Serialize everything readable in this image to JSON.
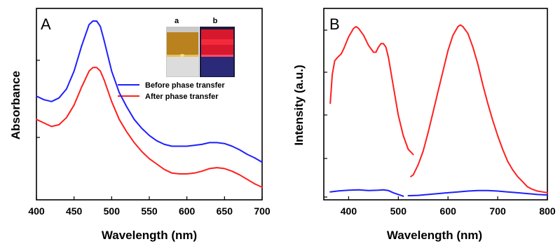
{
  "chart_data": [
    {
      "type": "line",
      "panel_label": "A",
      "xlabel": "Wavelength (nm)",
      "ylabel": "Absorbance",
      "xlim": [
        400,
        700
      ],
      "x_ticks": [
        "400",
        "450",
        "500",
        "550",
        "600",
        "650",
        "700"
      ],
      "y_ticks_shown_without_labels": 2,
      "legend_position": "upper-right",
      "series": [
        {
          "name": "Before phase transfer",
          "color": "#1f1fff",
          "x": [
            400,
            410,
            420,
            430,
            440,
            450,
            460,
            470,
            475,
            480,
            485,
            490,
            500,
            510,
            520,
            530,
            540,
            550,
            560,
            570,
            580,
            590,
            600,
            610,
            620,
            630,
            640,
            650,
            660,
            670,
            680,
            690,
            700
          ],
          "y": [
            0.58,
            0.56,
            0.55,
            0.57,
            0.62,
            0.72,
            0.86,
            0.98,
            1.0,
            1.0,
            0.97,
            0.89,
            0.72,
            0.6,
            0.52,
            0.45,
            0.4,
            0.36,
            0.33,
            0.31,
            0.3,
            0.3,
            0.3,
            0.305,
            0.31,
            0.32,
            0.32,
            0.315,
            0.3,
            0.28,
            0.255,
            0.235,
            0.21
          ]
        },
        {
          "name": "After phase transfer",
          "color": "#ff1f1f",
          "x": [
            400,
            410,
            420,
            430,
            440,
            450,
            460,
            470,
            475,
            480,
            485,
            490,
            500,
            510,
            520,
            530,
            540,
            550,
            560,
            570,
            580,
            590,
            600,
            610,
            620,
            630,
            640,
            650,
            660,
            670,
            680,
            690,
            700
          ],
          "y": [
            0.45,
            0.43,
            0.41,
            0.42,
            0.46,
            0.53,
            0.63,
            0.72,
            0.74,
            0.74,
            0.72,
            0.67,
            0.55,
            0.45,
            0.38,
            0.32,
            0.27,
            0.23,
            0.2,
            0.17,
            0.15,
            0.145,
            0.145,
            0.15,
            0.16,
            0.175,
            0.18,
            0.175,
            0.16,
            0.14,
            0.115,
            0.09,
            0.07
          ]
        }
      ],
      "inset": {
        "labels": [
          "a",
          "b"
        ]
      }
    },
    {
      "type": "line",
      "panel_label": "B",
      "xlabel": "Wavelength (nm)",
      "ylabel": "Intensity (a.u.)",
      "xlim": [
        350,
        800
      ],
      "x_ticks": [
        "400",
        "500",
        "600",
        "700",
        "800"
      ],
      "y_ticks_shown_without_labels": 5,
      "series": [
        {
          "color": "#ff1f1f",
          "x": [
            363,
            367,
            372,
            378,
            385,
            390,
            400,
            410,
            415,
            420,
            430,
            440,
            450,
            455,
            460,
            465,
            470,
            475,
            480,
            490,
            500,
            510,
            520,
            530
          ],
          "y": [
            0.55,
            0.72,
            0.8,
            0.82,
            0.84,
            0.87,
            0.94,
            0.99,
            1.0,
            0.99,
            0.95,
            0.89,
            0.85,
            0.85,
            0.88,
            0.9,
            0.9,
            0.88,
            0.82,
            0.65,
            0.48,
            0.36,
            0.28,
            0.25
          ]
        },
        {
          "color": "#ff1f1f",
          "x": [
            525,
            530,
            540,
            550,
            560,
            570,
            580,
            590,
            600,
            610,
            620,
            625,
            630,
            640,
            650,
            660,
            670,
            680,
            690,
            700,
            710,
            720,
            730,
            740,
            750,
            760,
            770,
            780,
            790,
            800
          ],
          "y": [
            0.12,
            0.13,
            0.19,
            0.27,
            0.38,
            0.5,
            0.62,
            0.74,
            0.86,
            0.95,
            1.0,
            1.01,
            1.0,
            0.96,
            0.88,
            0.78,
            0.66,
            0.55,
            0.45,
            0.36,
            0.28,
            0.21,
            0.16,
            0.12,
            0.09,
            0.06,
            0.045,
            0.035,
            0.03,
            0.025
          ]
        },
        {
          "color": "#1f1fff",
          "x": [
            363,
            380,
            400,
            420,
            440,
            460,
            470,
            480,
            490,
            500,
            505,
            510
          ],
          "y": [
            0.03,
            0.036,
            0.04,
            0.042,
            0.038,
            0.04,
            0.042,
            0.038,
            0.025,
            0.015,
            0.01,
            0.005
          ]
        },
        {
          "color": "#1f1fff",
          "x": [
            520,
            540,
            560,
            580,
            600,
            620,
            640,
            660,
            680,
            700,
            720,
            740,
            760,
            780,
            800
          ],
          "y": [
            0.008,
            0.01,
            0.015,
            0.02,
            0.025,
            0.03,
            0.035,
            0.038,
            0.038,
            0.035,
            0.03,
            0.025,
            0.02,
            0.015,
            0.012
          ]
        }
      ]
    }
  ],
  "colors": {
    "before": "#1f1fff",
    "after": "#ff1f1f",
    "vial_a_top": "#b9821e",
    "vial_a_bottom": "#d9d9d9",
    "vial_b_top": "#d8182c",
    "vial_b_bottom": "#2a2a78"
  }
}
